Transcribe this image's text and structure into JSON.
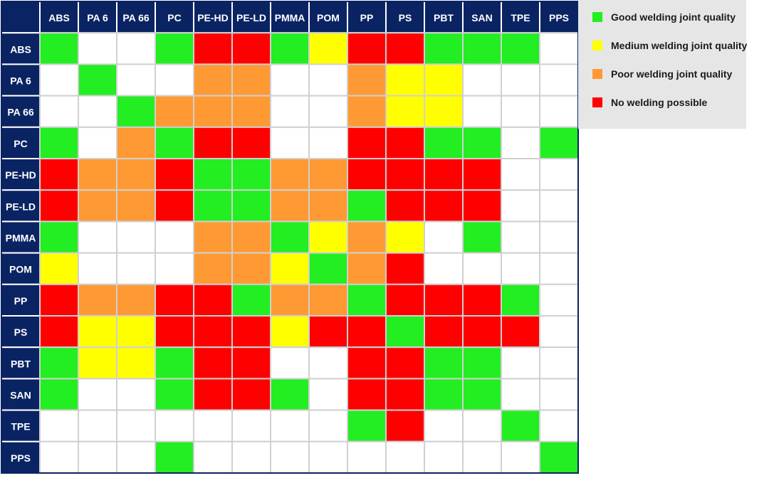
{
  "chart_data": {
    "type": "heatmap",
    "title": "",
    "xlabel": "",
    "ylabel": "",
    "columns": [
      "ABS",
      "PA 6",
      "PA 66",
      "PC",
      "PE-HD",
      "PE-LD",
      "PMMA",
      "POM",
      "PP",
      "PS",
      "PBT",
      "SAN",
      "TPE",
      "PPS"
    ],
    "rows": [
      "ABS",
      "PA 6",
      "PA 66",
      "PC",
      "PE-HD",
      "PE-LD",
      "PMMA",
      "POM",
      "PP",
      "PS",
      "PBT",
      "SAN",
      "TPE",
      "PPS"
    ],
    "levels": {
      "G": {
        "label": "Good welding joint quality",
        "color": "#22ee22"
      },
      "Y": {
        "label": "Medium welding joint quality",
        "color": "#ffff00"
      },
      "O": {
        "label": "Poor welding joint quality",
        "color": "#ff9933"
      },
      "R": {
        "label": "No welding possible",
        "color": "#ff0000"
      },
      "W": {
        "label": "",
        "color": "#ffffff"
      }
    },
    "legend_order": [
      "G",
      "Y",
      "O",
      "R"
    ],
    "legend_position": "top-right",
    "values": [
      [
        "G",
        "W",
        "W",
        "G",
        "R",
        "R",
        "G",
        "Y",
        "R",
        "R",
        "G",
        "G",
        "G",
        "W"
      ],
      [
        "W",
        "G",
        "W",
        "W",
        "O",
        "O",
        "W",
        "W",
        "O",
        "Y",
        "Y",
        "W",
        "W",
        "W"
      ],
      [
        "W",
        "W",
        "G",
        "O",
        "O",
        "O",
        "W",
        "W",
        "O",
        "Y",
        "Y",
        "W",
        "W",
        "W"
      ],
      [
        "G",
        "W",
        "O",
        "G",
        "R",
        "R",
        "W",
        "W",
        "R",
        "R",
        "G",
        "G",
        "W",
        "G"
      ],
      [
        "R",
        "O",
        "O",
        "R",
        "G",
        "G",
        "O",
        "O",
        "R",
        "R",
        "R",
        "R",
        "W",
        "W"
      ],
      [
        "R",
        "O",
        "O",
        "R",
        "G",
        "G",
        "O",
        "O",
        "G",
        "R",
        "R",
        "R",
        "W",
        "W"
      ],
      [
        "G",
        "W",
        "W",
        "W",
        "O",
        "O",
        "G",
        "Y",
        "O",
        "Y",
        "W",
        "G",
        "W",
        "W"
      ],
      [
        "Y",
        "W",
        "W",
        "W",
        "O",
        "O",
        "Y",
        "G",
        "O",
        "R",
        "W",
        "W",
        "W",
        "W"
      ],
      [
        "R",
        "O",
        "O",
        "R",
        "R",
        "G",
        "O",
        "O",
        "G",
        "R",
        "R",
        "R",
        "G",
        "W"
      ],
      [
        "R",
        "Y",
        "Y",
        "R",
        "R",
        "R",
        "Y",
        "R",
        "R",
        "G",
        "R",
        "R",
        "R",
        "W"
      ],
      [
        "G",
        "Y",
        "Y",
        "G",
        "R",
        "R",
        "W",
        "W",
        "R",
        "R",
        "G",
        "G",
        "W",
        "W"
      ],
      [
        "G",
        "W",
        "W",
        "G",
        "R",
        "R",
        "G",
        "W",
        "R",
        "R",
        "G",
        "G",
        "W",
        "W"
      ],
      [
        "W",
        "W",
        "W",
        "W",
        "W",
        "W",
        "W",
        "W",
        "G",
        "R",
        "W",
        "W",
        "G",
        "W"
      ],
      [
        "W",
        "W",
        "W",
        "G",
        "W",
        "W",
        "W",
        "W",
        "W",
        "W",
        "W",
        "W",
        "W",
        "G"
      ]
    ]
  },
  "colors": {
    "header_bg": "#0a2463",
    "grid_line": "#d0d0d0",
    "legend_bg": "#e6e6e6"
  }
}
